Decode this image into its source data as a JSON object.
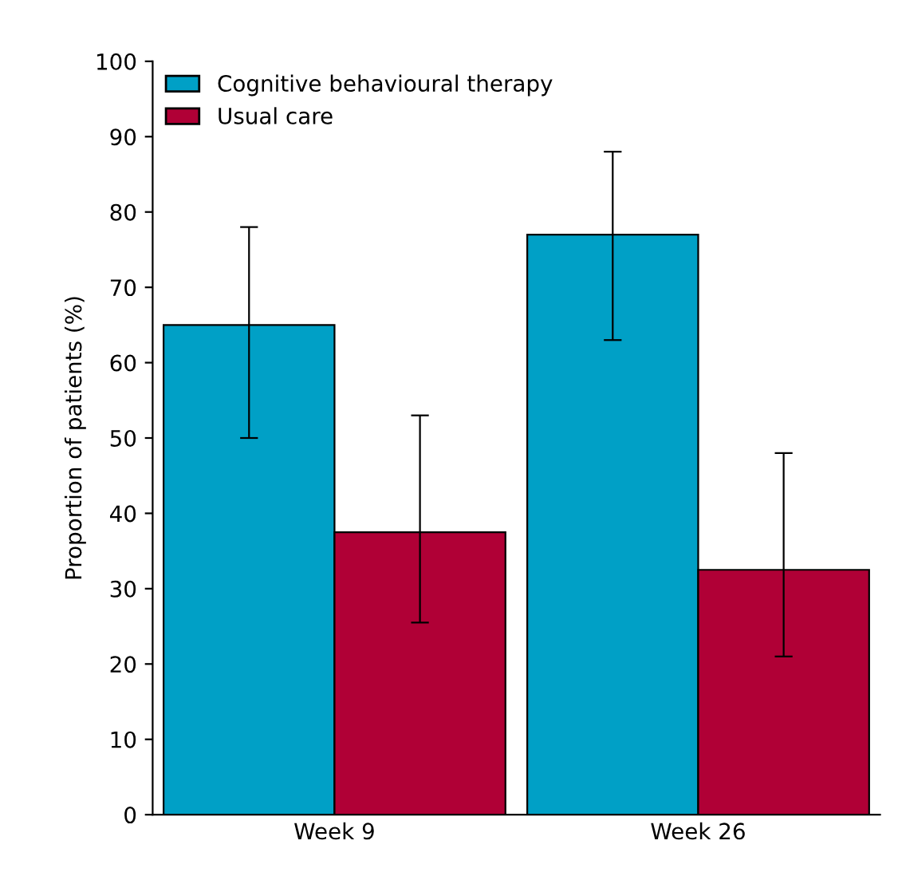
{
  "chart_data": {
    "type": "bar",
    "ylabel": "Proportion of patients (%)",
    "categories": [
      "Week 9",
      "Week 26"
    ],
    "series": [
      {
        "name": "Cognitive behavioural therapy",
        "color": "#00a0c6",
        "values": [
          65,
          77
        ],
        "errors": [
          [
            50,
            78
          ],
          [
            63,
            88
          ]
        ]
      },
      {
        "name": "Usual care",
        "color": "#b00036",
        "values": [
          37.5,
          32.5
        ],
        "errors": [
          [
            25.5,
            53
          ],
          [
            21,
            48
          ]
        ]
      }
    ],
    "ylim": [
      0,
      100
    ],
    "yticks": [
      0,
      10,
      20,
      30,
      40,
      50,
      60,
      70,
      80,
      90,
      100
    ],
    "grid": false,
    "legend": "top left"
  }
}
